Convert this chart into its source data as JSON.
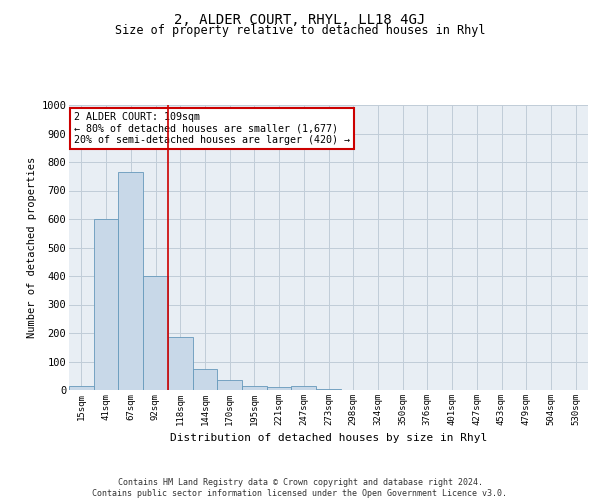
{
  "title1": "2, ALDER COURT, RHYL, LL18 4GJ",
  "title2": "Size of property relative to detached houses in Rhyl",
  "xlabel": "Distribution of detached houses by size in Rhyl",
  "ylabel": "Number of detached properties",
  "footer": "Contains HM Land Registry data © Crown copyright and database right 2024.\nContains public sector information licensed under the Open Government Licence v3.0.",
  "categories": [
    "15sqm",
    "41sqm",
    "67sqm",
    "92sqm",
    "118sqm",
    "144sqm",
    "170sqm",
    "195sqm",
    "221sqm",
    "247sqm",
    "273sqm",
    "298sqm",
    "324sqm",
    "350sqm",
    "376sqm",
    "401sqm",
    "427sqm",
    "453sqm",
    "479sqm",
    "504sqm",
    "530sqm"
  ],
  "values": [
    15,
    600,
    765,
    400,
    185,
    75,
    35,
    15,
    10,
    15,
    5,
    0,
    0,
    0,
    0,
    0,
    0,
    0,
    0,
    0,
    0
  ],
  "bar_color": "#c8d8e8",
  "bar_edge_color": "#6699bb",
  "vline_x": 3.5,
  "vline_color": "#cc0000",
  "ylim": [
    0,
    1000
  ],
  "yticks": [
    0,
    100,
    200,
    300,
    400,
    500,
    600,
    700,
    800,
    900,
    1000
  ],
  "annotation_text": "2 ALDER COURT: 109sqm\n← 80% of detached houses are smaller (1,677)\n20% of semi-detached houses are larger (420) →",
  "annotation_box_color": "#ffffff",
  "annotation_box_edge": "#cc0000",
  "grid_color": "#c0ccd8",
  "bg_color": "#e8eef4",
  "title1_fontsize": 10,
  "title2_fontsize": 8.5
}
